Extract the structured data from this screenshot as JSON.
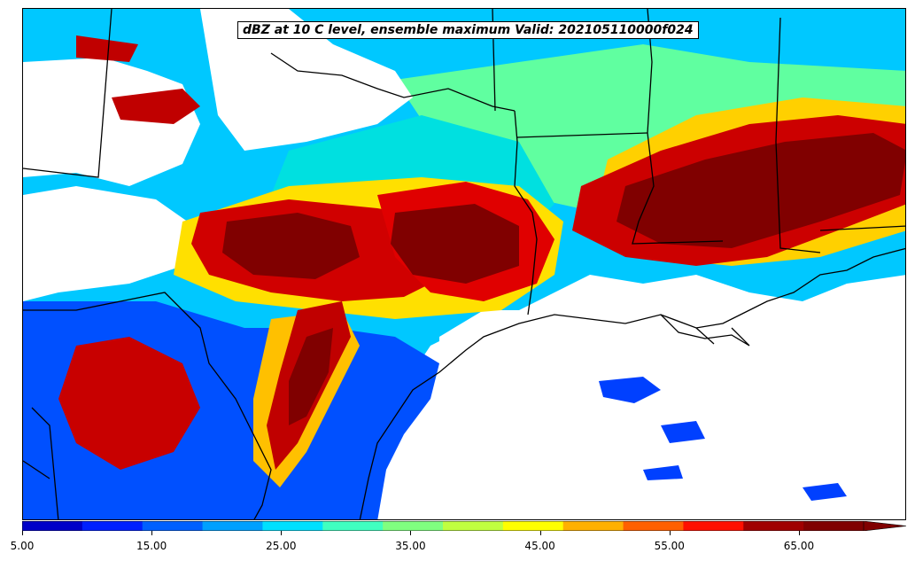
{
  "title": "dBZ at 10 C level, ensemble maximum Valid: 202105110000f024",
  "colorbar": {
    "min": 5,
    "max": 70,
    "extend": "max",
    "ticks": [
      "5.00",
      "15.00",
      "25.00",
      "35.00",
      "45.00",
      "55.00",
      "65.00"
    ],
    "colors": [
      "#0000c8",
      "#0020ff",
      "#0060ff",
      "#00a0ff",
      "#00e0ff",
      "#40ffc0",
      "#80ff80",
      "#c0ff40",
      "#ffff00",
      "#ffb000",
      "#ff6000",
      "#ff1000",
      "#a00000",
      "#800000"
    ]
  }
}
